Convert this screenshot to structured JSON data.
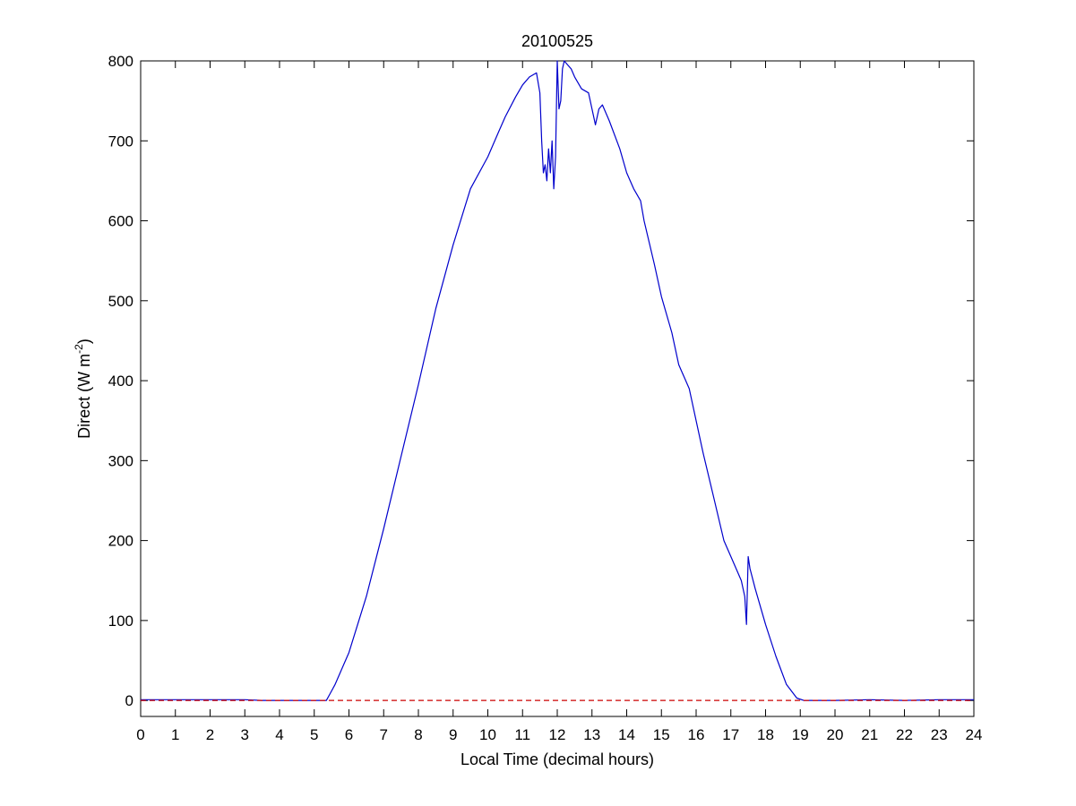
{
  "chart_data": {
    "type": "line",
    "title": "20100525",
    "xlabel": "Local Time (decimal hours)",
    "ylabel": {
      "main": "Direct (W m",
      "superscript": "-2",
      "close": ")"
    },
    "xlim": [
      0,
      24
    ],
    "ylim": [
      -20,
      800
    ],
    "x_ticks": [
      0,
      1,
      2,
      3,
      4,
      5,
      6,
      7,
      8,
      9,
      10,
      11,
      12,
      13,
      14,
      15,
      16,
      17,
      18,
      19,
      20,
      21,
      22,
      23,
      24
    ],
    "y_ticks": [
      0,
      100,
      200,
      300,
      400,
      500,
      600,
      700,
      800
    ],
    "grid": false,
    "series": [
      {
        "line_color": "#0000cc",
        "line_style": "solid",
        "x": [
          0,
          1,
          2,
          3,
          3.5,
          4,
          5,
          5.35,
          5.45,
          5.6,
          6.0,
          6.5,
          7.0,
          7.5,
          8.0,
          8.5,
          9.0,
          9.5,
          10.0,
          10.3,
          10.5,
          10.8,
          11.0,
          11.2,
          11.4,
          11.5,
          11.55,
          11.6,
          11.65,
          11.7,
          11.75,
          11.8,
          11.85,
          11.9,
          11.95,
          12.0,
          12.05,
          12.1,
          12.15,
          12.2,
          12.3,
          12.4,
          12.5,
          12.7,
          12.9,
          13.1,
          13.2,
          13.3,
          13.5,
          13.8,
          14.0,
          14.2,
          14.4,
          14.5,
          14.8,
          15.0,
          15.3,
          15.5,
          15.8,
          16.0,
          16.2,
          16.5,
          16.8,
          17.0,
          17.3,
          17.4,
          17.45,
          17.5,
          17.55,
          17.7,
          18.0,
          18.3,
          18.6,
          18.9,
          19.1,
          19.5,
          20,
          21,
          22,
          23,
          24
        ],
        "y": [
          1,
          1,
          1,
          1,
          0,
          0,
          0,
          0,
          8,
          20,
          60,
          130,
          215,
          305,
          395,
          490,
          570,
          640,
          680,
          710,
          730,
          755,
          770,
          780,
          785,
          760,
          700,
          660,
          670,
          650,
          690,
          660,
          700,
          640,
          680,
          800,
          740,
          750,
          790,
          800,
          795,
          790,
          780,
          765,
          760,
          720,
          740,
          745,
          725,
          690,
          660,
          640,
          625,
          600,
          545,
          505,
          460,
          420,
          390,
          350,
          310,
          255,
          200,
          180,
          150,
          130,
          95,
          180,
          165,
          140,
          95,
          55,
          20,
          3,
          0,
          0,
          0,
          1,
          0,
          1,
          1
        ]
      },
      {
        "line_color": "#cc0000",
        "line_style": "dashed",
        "x": [
          0,
          24
        ],
        "y": [
          0,
          0
        ]
      }
    ]
  }
}
